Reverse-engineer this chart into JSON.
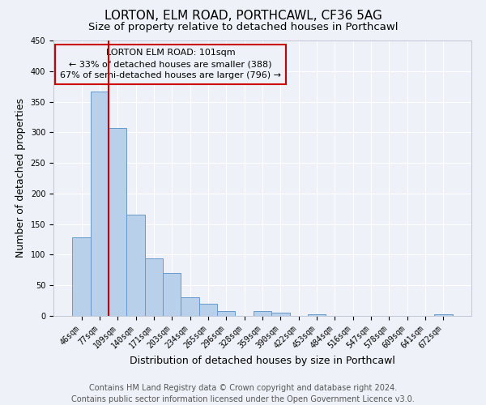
{
  "title": "LORTON, ELM ROAD, PORTHCAWL, CF36 5AG",
  "subtitle": "Size of property relative to detached houses in Porthcawl",
  "xlabel": "Distribution of detached houses by size in Porthcawl",
  "ylabel": "Number of detached properties",
  "bar_labels": [
    "46sqm",
    "77sqm",
    "109sqm",
    "140sqm",
    "171sqm",
    "203sqm",
    "234sqm",
    "265sqm",
    "296sqm",
    "328sqm",
    "359sqm",
    "390sqm",
    "422sqm",
    "453sqm",
    "484sqm",
    "516sqm",
    "547sqm",
    "578sqm",
    "609sqm",
    "641sqm",
    "672sqm"
  ],
  "bar_values": [
    128,
    367,
    307,
    165,
    94,
    70,
    30,
    20,
    8,
    0,
    8,
    5,
    0,
    2,
    0,
    0,
    0,
    0,
    0,
    0,
    2
  ],
  "bar_color": "#b8d0ea",
  "bar_edgecolor": "#6699cc",
  "vline_color": "#cc0000",
  "annotation_title": "LORTON ELM ROAD: 101sqm",
  "annotation_line1": "← 33% of detached houses are smaller (388)",
  "annotation_line2": "67% of semi-detached houses are larger (796) →",
  "annotation_box_edgecolor": "#cc0000",
  "ylim": [
    0,
    450
  ],
  "yticks": [
    0,
    50,
    100,
    150,
    200,
    250,
    300,
    350,
    400,
    450
  ],
  "footer_line1": "Contains HM Land Registry data © Crown copyright and database right 2024.",
  "footer_line2": "Contains public sector information licensed under the Open Government Licence v3.0.",
  "background_color": "#eef2f8",
  "grid_color": "#ffffff",
  "title_fontsize": 11,
  "subtitle_fontsize": 9.5,
  "axis_label_fontsize": 9,
  "tick_fontsize": 7,
  "annotation_fontsize": 8,
  "footer_fontsize": 7
}
